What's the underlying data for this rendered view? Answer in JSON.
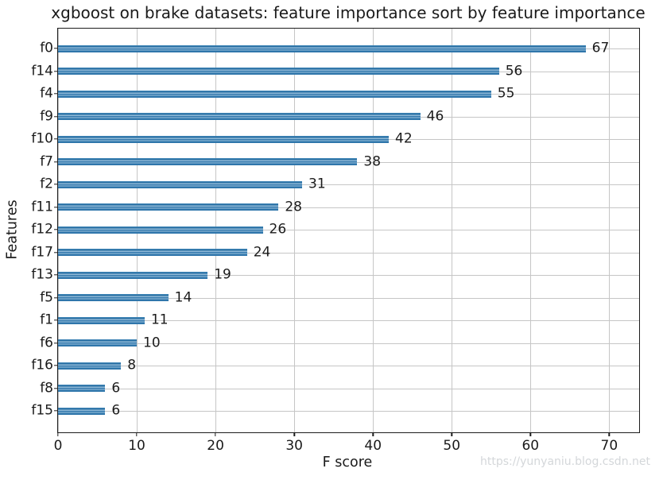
{
  "figure": {
    "title": "xgboost on brake datasets: feature importance sort by feature importance",
    "xlabel": "F score",
    "ylabel": "Features",
    "watermark": "https://yunyaniu.blog.csdn.net"
  },
  "chart_data": {
    "type": "bar",
    "orientation": "horizontal",
    "title": "xgboost on brake datasets: feature importance sort by feature importance",
    "xlabel": "F score",
    "ylabel": "Features",
    "categories": [
      "f0",
      "f14",
      "f4",
      "f9",
      "f10",
      "f7",
      "f2",
      "f11",
      "f12",
      "f17",
      "f13",
      "f5",
      "f1",
      "f6",
      "f16",
      "f8",
      "f15"
    ],
    "values": [
      67,
      56,
      55,
      46,
      42,
      38,
      31,
      28,
      26,
      24,
      19,
      14,
      11,
      10,
      8,
      6,
      6
    ],
    "value_labels_shown": true,
    "xticks": [
      0,
      10,
      20,
      30,
      40,
      50,
      60,
      70
    ],
    "xlim": [
      0,
      73.8
    ],
    "grid": true,
    "legend": "none",
    "colors": {
      "bar": "#2f76ab",
      "bar_highlight": "#9cc2dd",
      "grid": "#c6c6c6",
      "spine": "#1c1c1c",
      "text": "#1a1a1a",
      "watermark": "#d4d7da",
      "background": "#ffffff"
    }
  }
}
